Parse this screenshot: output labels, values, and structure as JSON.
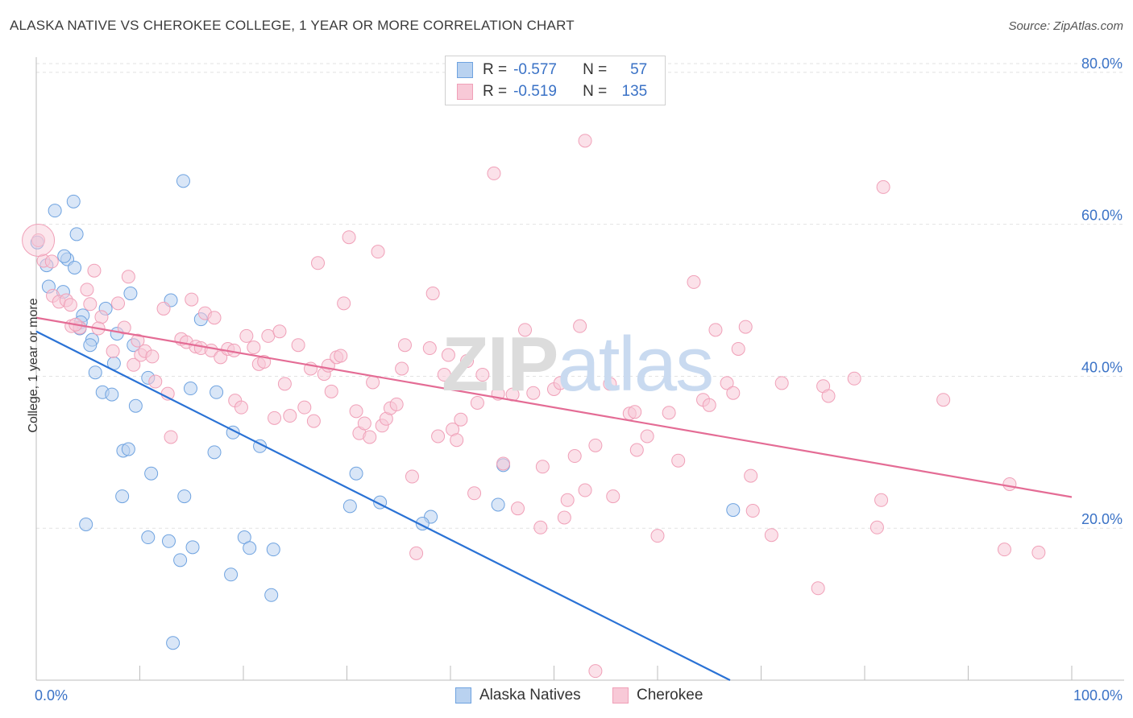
{
  "title": "ALASKA NATIVE VS CHEROKEE COLLEGE, 1 YEAR OR MORE CORRELATION CHART",
  "source": "Source: ZipAtlas.com",
  "watermark": {
    "zip": "ZIP",
    "atlas": "atlas"
  },
  "legend_top": [
    {
      "r_label": "R =",
      "r_value": "-0.577",
      "n_label": "N =",
      "n_value": "57"
    },
    {
      "r_label": "R =",
      "r_value": "-0.519",
      "n_label": "N =",
      "n_value": "135"
    }
  ],
  "chart_data": {
    "type": "scatter",
    "title": "ALASKA NATIVE VS CHEROKEE COLLEGE, 1 YEAR OR MORE CORRELATION CHART",
    "xlabel": "",
    "ylabel": "College, 1 year or more",
    "xlim": [
      0,
      100
    ],
    "ylim": [
      0,
      82
    ],
    "x_tick_labels": [
      "0.0%",
      "100.0%"
    ],
    "y_ticks": [
      20,
      40,
      60,
      80
    ],
    "y_tick_labels": [
      "20.0%",
      "40.0%",
      "60.0%",
      "80.0%"
    ],
    "grid": true,
    "legend_position": "bottom-center",
    "series": [
      {
        "name": "Alaska Natives",
        "color": "#6fa3e0",
        "fill": "#b9d2f0",
        "trend_color": "#2a72d5",
        "r": -0.577,
        "n": 57,
        "trend": {
          "x0": 0,
          "y0": 45.9,
          "x1": 67.0,
          "y1": 0
        },
        "points": [
          [
            0.1,
            57.6
          ],
          [
            1.8,
            61.8
          ],
          [
            3.6,
            63.0
          ],
          [
            3.0,
            55.4
          ],
          [
            3.7,
            54.3
          ],
          [
            1.0,
            54.6
          ],
          [
            2.7,
            55.8
          ],
          [
            3.9,
            58.7
          ],
          [
            1.2,
            51.8
          ],
          [
            2.6,
            51.1
          ],
          [
            4.5,
            48.0
          ],
          [
            4.3,
            47.1
          ],
          [
            6.7,
            48.9
          ],
          [
            9.1,
            50.9
          ],
          [
            13.0,
            50.0
          ],
          [
            14.2,
            65.7
          ],
          [
            4.2,
            46.3
          ],
          [
            5.4,
            44.8
          ],
          [
            7.8,
            45.6
          ],
          [
            5.2,
            44.1
          ],
          [
            9.4,
            44.1
          ],
          [
            7.5,
            41.7
          ],
          [
            10.8,
            39.8
          ],
          [
            14.9,
            38.4
          ],
          [
            5.7,
            40.5
          ],
          [
            6.4,
            37.9
          ],
          [
            7.3,
            37.6
          ],
          [
            9.6,
            36.1
          ],
          [
            17.4,
            37.9
          ],
          [
            15.9,
            47.5
          ],
          [
            19.0,
            32.6
          ],
          [
            21.6,
            30.8
          ],
          [
            8.4,
            30.2
          ],
          [
            8.9,
            30.4
          ],
          [
            11.1,
            27.2
          ],
          [
            17.2,
            30.0
          ],
          [
            8.3,
            24.2
          ],
          [
            14.3,
            24.2
          ],
          [
            4.8,
            20.5
          ],
          [
            10.8,
            18.8
          ],
          [
            12.8,
            18.3
          ],
          [
            15.1,
            17.5
          ],
          [
            13.9,
            15.8
          ],
          [
            20.1,
            18.8
          ],
          [
            20.6,
            17.4
          ],
          [
            22.9,
            17.2
          ],
          [
            18.8,
            13.9
          ],
          [
            22.7,
            11.2
          ],
          [
            13.2,
            4.9
          ],
          [
            30.3,
            22.9
          ],
          [
            30.9,
            27.2
          ],
          [
            33.2,
            23.4
          ],
          [
            38.1,
            21.5
          ],
          [
            37.3,
            20.6
          ],
          [
            44.6,
            23.1
          ],
          [
            45.1,
            28.3
          ],
          [
            67.3,
            22.4
          ]
        ]
      },
      {
        "name": "Cherokee",
        "color": "#f0a0b8",
        "fill": "#f8c9d7",
        "trend_color": "#e46c95",
        "r": -0.519,
        "n": 135,
        "trend": {
          "x0": 0,
          "y0": 47.7,
          "x1": 100,
          "y1": 24.1
        },
        "points": [
          [
            0.2,
            57.9
          ],
          [
            0.7,
            55.2
          ],
          [
            1.6,
            50.6
          ],
          [
            2.2,
            49.8
          ],
          [
            2.9,
            50.0
          ],
          [
            3.4,
            46.6
          ],
          [
            4.2,
            46.4
          ],
          [
            3.8,
            46.8
          ],
          [
            4.9,
            51.4
          ],
          [
            5.2,
            49.5
          ],
          [
            5.6,
            53.9
          ],
          [
            6.3,
            47.8
          ],
          [
            6.0,
            46.3
          ],
          [
            7.4,
            43.3
          ],
          [
            7.9,
            49.6
          ],
          [
            8.5,
            46.4
          ],
          [
            8.9,
            53.1
          ],
          [
            9.4,
            41.5
          ],
          [
            9.8,
            44.7
          ],
          [
            10.1,
            42.8
          ],
          [
            10.5,
            43.3
          ],
          [
            11.2,
            42.6
          ],
          [
            11.5,
            39.3
          ],
          [
            12.3,
            48.9
          ],
          [
            12.7,
            37.7
          ],
          [
            13.0,
            32.0
          ],
          [
            14.0,
            44.9
          ],
          [
            14.5,
            44.5
          ],
          [
            15.0,
            50.1
          ],
          [
            15.4,
            43.9
          ],
          [
            15.9,
            43.7
          ],
          [
            16.3,
            48.3
          ],
          [
            16.9,
            43.4
          ],
          [
            17.2,
            47.7
          ],
          [
            17.8,
            42.5
          ],
          [
            18.5,
            43.6
          ],
          [
            19.1,
            43.4
          ],
          [
            19.2,
            36.8
          ],
          [
            19.8,
            35.9
          ],
          [
            20.3,
            45.3
          ],
          [
            21.0,
            43.8
          ],
          [
            21.5,
            41.6
          ],
          [
            22.0,
            41.9
          ],
          [
            22.4,
            45.3
          ],
          [
            23.0,
            34.5
          ],
          [
            23.5,
            45.9
          ],
          [
            24.0,
            39.0
          ],
          [
            24.5,
            34.8
          ],
          [
            25.3,
            44.1
          ],
          [
            25.9,
            35.9
          ],
          [
            26.5,
            41.0
          ],
          [
            26.8,
            34.1
          ],
          [
            27.2,
            54.9
          ],
          [
            27.8,
            40.3
          ],
          [
            28.2,
            41.4
          ],
          [
            28.5,
            38.0
          ],
          [
            29.0,
            42.5
          ],
          [
            29.4,
            42.7
          ],
          [
            29.7,
            49.6
          ],
          [
            30.2,
            58.3
          ],
          [
            30.9,
            35.4
          ],
          [
            31.2,
            32.5
          ],
          [
            31.7,
            33.8
          ],
          [
            32.2,
            32.0
          ],
          [
            32.5,
            39.2
          ],
          [
            33.0,
            56.4
          ],
          [
            33.4,
            33.5
          ],
          [
            33.8,
            34.4
          ],
          [
            34.2,
            35.8
          ],
          [
            34.8,
            36.3
          ],
          [
            35.3,
            41.0
          ],
          [
            35.6,
            44.1
          ],
          [
            36.3,
            26.8
          ],
          [
            36.7,
            16.7
          ],
          [
            38.0,
            43.7
          ],
          [
            38.3,
            50.9
          ],
          [
            38.8,
            32.1
          ],
          [
            39.4,
            40.2
          ],
          [
            39.8,
            42.8
          ],
          [
            40.2,
            33.0
          ],
          [
            40.6,
            31.6
          ],
          [
            41.0,
            34.3
          ],
          [
            41.6,
            42.0
          ],
          [
            42.3,
            24.6
          ],
          [
            42.6,
            36.5
          ],
          [
            43.1,
            40.2
          ],
          [
            44.2,
            66.7
          ],
          [
            44.6,
            37.7
          ],
          [
            45.1,
            28.5
          ],
          [
            46.0,
            37.6
          ],
          [
            46.5,
            22.6
          ],
          [
            47.2,
            46.1
          ],
          [
            48.0,
            37.8
          ],
          [
            48.7,
            20.1
          ],
          [
            48.9,
            28.1
          ],
          [
            50.0,
            38.3
          ],
          [
            50.6,
            39.1
          ],
          [
            51.0,
            21.4
          ],
          [
            51.3,
            23.7
          ],
          [
            52.0,
            29.5
          ],
          [
            52.5,
            46.6
          ],
          [
            53.0,
            25.0
          ],
          [
            54.0,
            30.9
          ],
          [
            55.4,
            39.0
          ],
          [
            55.7,
            24.2
          ],
          [
            57.3,
            35.1
          ],
          [
            57.8,
            35.3
          ],
          [
            58.0,
            30.3
          ],
          [
            59.0,
            32.1
          ],
          [
            60.0,
            19.0
          ],
          [
            61.1,
            35.2
          ],
          [
            62.0,
            28.9
          ],
          [
            63.5,
            52.4
          ],
          [
            64.4,
            36.9
          ],
          [
            65.0,
            36.2
          ],
          [
            65.6,
            46.1
          ],
          [
            66.7,
            39.1
          ],
          [
            67.3,
            37.8
          ],
          [
            67.8,
            43.6
          ],
          [
            68.5,
            46.5
          ],
          [
            69.0,
            26.9
          ],
          [
            69.2,
            22.3
          ],
          [
            71.0,
            19.1
          ],
          [
            72.0,
            39.1
          ],
          [
            75.5,
            12.1
          ],
          [
            76.0,
            38.7
          ],
          [
            76.5,
            37.4
          ],
          [
            79.0,
            39.7
          ],
          [
            81.2,
            20.1
          ],
          [
            81.6,
            23.7
          ],
          [
            81.8,
            64.9
          ],
          [
            87.6,
            36.9
          ],
          [
            93.5,
            17.2
          ],
          [
            94.0,
            25.8
          ],
          [
            96.8,
            16.8
          ],
          [
            53.0,
            71.0
          ],
          [
            54.0,
            1.2
          ],
          [
            1.5,
            55.1
          ],
          [
            3.3,
            49.4
          ]
        ]
      }
    ]
  }
}
